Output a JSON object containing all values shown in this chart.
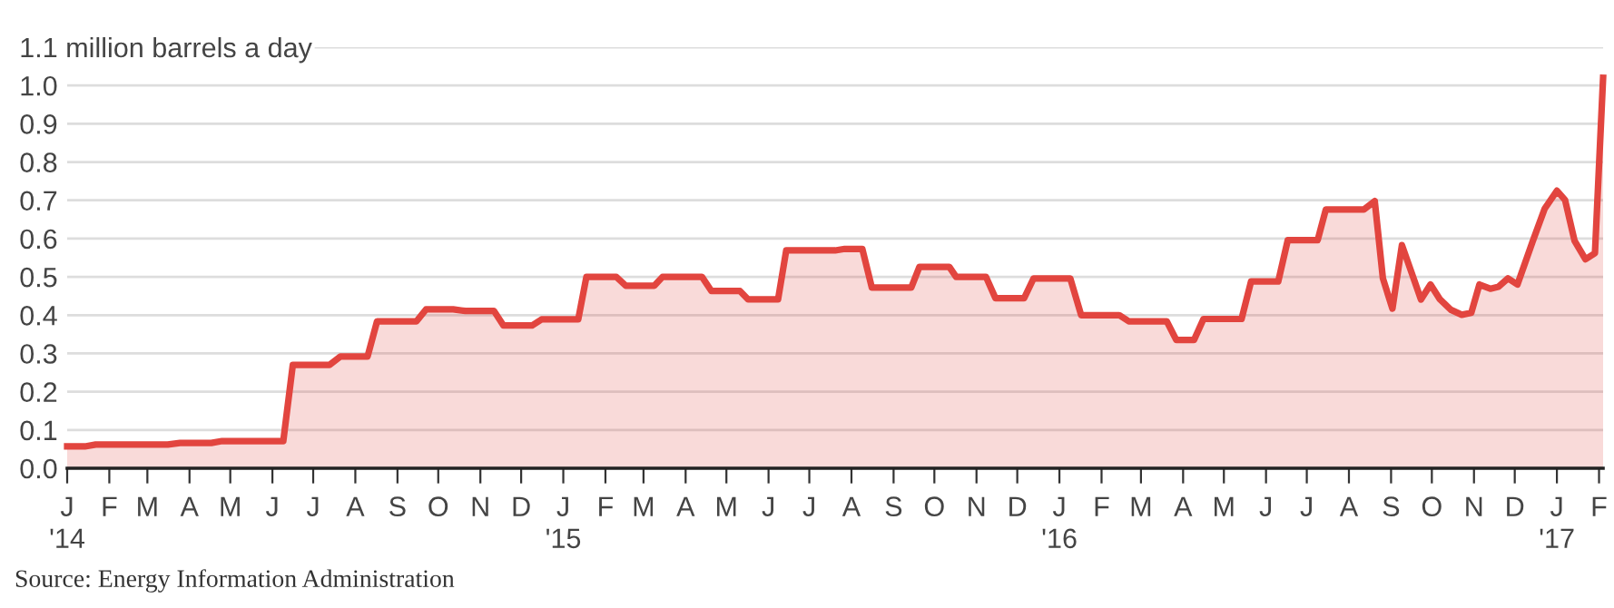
{
  "chart_data": {
    "type": "area",
    "ylim": [
      0,
      1.1
    ],
    "yticks": [
      {
        "value": 0,
        "label": "0.0"
      },
      {
        "value": 0.1,
        "label": "0.1"
      },
      {
        "value": 0.2,
        "label": "0.2"
      },
      {
        "value": 0.3,
        "label": "0.3"
      },
      {
        "value": 0.4,
        "label": "0.4"
      },
      {
        "value": 0.5,
        "label": "0.5"
      },
      {
        "value": 0.6,
        "label": "0.6"
      },
      {
        "value": 0.7,
        "label": "0.7"
      },
      {
        "value": 0.8,
        "label": "0.8"
      },
      {
        "value": 0.9,
        "label": "0.9"
      },
      {
        "value": 1.0,
        "label": "1.0"
      },
      {
        "value": 1.1,
        "label": "1.1 million barrels a day"
      }
    ],
    "xlim": [
      "2014-01-01",
      "2017-02-04"
    ],
    "xticks": [
      {
        "value": "2014-01-01",
        "label": "J\n'14"
      },
      {
        "value": "2014-02-01",
        "label": "F"
      },
      {
        "value": "2014-03-01",
        "label": "M"
      },
      {
        "value": "2014-04-01",
        "label": "A"
      },
      {
        "value": "2014-05-01",
        "label": "M"
      },
      {
        "value": "2014-06-01",
        "label": "J"
      },
      {
        "value": "2014-07-01",
        "label": "J"
      },
      {
        "value": "2014-08-01",
        "label": "A"
      },
      {
        "value": "2014-09-01",
        "label": "S"
      },
      {
        "value": "2014-10-01",
        "label": "O"
      },
      {
        "value": "2014-11-01",
        "label": "N"
      },
      {
        "value": "2014-12-01",
        "label": "D"
      },
      {
        "value": "2015-01-01",
        "label": "J\n'15"
      },
      {
        "value": "2015-02-01",
        "label": "F"
      },
      {
        "value": "2015-03-01",
        "label": "M"
      },
      {
        "value": "2015-04-01",
        "label": "A"
      },
      {
        "value": "2015-05-01",
        "label": "M"
      },
      {
        "value": "2015-06-01",
        "label": "J"
      },
      {
        "value": "2015-07-01",
        "label": "J"
      },
      {
        "value": "2015-08-01",
        "label": "A"
      },
      {
        "value": "2015-09-01",
        "label": "S"
      },
      {
        "value": "2015-10-01",
        "label": "O"
      },
      {
        "value": "2015-11-01",
        "label": "N"
      },
      {
        "value": "2015-12-01",
        "label": "D"
      },
      {
        "value": "2016-01-01",
        "label": "J\n'16"
      },
      {
        "value": "2016-02-01",
        "label": "F"
      },
      {
        "value": "2016-03-01",
        "label": "M"
      },
      {
        "value": "2016-04-01",
        "label": "A"
      },
      {
        "value": "2016-05-01",
        "label": "M"
      },
      {
        "value": "2016-06-01",
        "label": "J"
      },
      {
        "value": "2016-07-01",
        "label": "J"
      },
      {
        "value": "2016-08-01",
        "label": "A"
      },
      {
        "value": "2016-09-01",
        "label": "S"
      },
      {
        "value": "2016-10-01",
        "label": "O"
      },
      {
        "value": "2016-11-01",
        "label": "N"
      },
      {
        "value": "2016-12-01",
        "label": "D"
      },
      {
        "value": "2017-01-01",
        "label": "J\n'17"
      },
      {
        "value": "2017-02-01",
        "label": "F"
      }
    ],
    "grid": "y",
    "legend": false,
    "annotations": [
      "Source: Energy Information Administration"
    ],
    "series": [
      {
        "color": "#e2453f",
        "x": [
          "2014-01-01",
          "2014-01-14",
          "2014-01-22",
          "2014-03-16",
          "2014-03-25",
          "2014-04-17",
          "2014-04-25",
          "2014-06-09",
          "2014-06-16",
          "2014-07-13",
          "2014-07-21",
          "2014-08-10",
          "2014-08-17",
          "2014-09-15",
          "2014-09-22",
          "2014-10-12",
          "2014-10-21",
          "2014-11-11",
          "2014-11-18",
          "2014-12-09",
          "2014-12-16",
          "2015-01-12",
          "2015-01-18",
          "2015-02-09",
          "2015-02-16",
          "2015-03-09",
          "2015-03-15",
          "2015-04-13",
          "2015-04-20",
          "2015-05-11",
          "2015-05-17",
          "2015-06-08",
          "2015-06-14",
          "2015-07-20",
          "2015-07-27",
          "2015-08-09",
          "2015-08-16",
          "2015-09-14",
          "2015-09-20",
          "2015-10-12",
          "2015-10-17",
          "2015-11-08",
          "2015-11-15",
          "2015-12-06",
          "2015-12-13",
          "2016-01-09",
          "2016-01-17",
          "2016-02-14",
          "2016-02-21",
          "2016-03-20",
          "2016-03-27",
          "2016-04-09",
          "2016-04-16",
          "2016-05-14",
          "2016-05-21",
          "2016-06-10",
          "2016-06-17",
          "2016-07-09",
          "2016-07-15",
          "2016-08-12",
          "2016-08-20",
          "2016-08-26",
          "2016-09-02",
          "2016-09-09",
          "2016-09-23",
          "2016-09-30",
          "2016-10-07",
          "2016-10-15",
          "2016-10-23",
          "2016-10-30",
          "2016-11-05",
          "2016-11-13",
          "2016-11-19",
          "2016-11-26",
          "2016-12-03",
          "2016-12-14",
          "2016-12-23",
          "2017-01-01",
          "2017-01-07",
          "2017-01-14",
          "2017-01-22",
          "2017-01-29",
          "2017-02-04"
        ],
        "values": [
          0.057,
          0.057,
          0.062,
          0.062,
          0.066,
          0.066,
          0.071,
          0.071,
          0.27,
          0.27,
          0.292,
          0.292,
          0.384,
          0.384,
          0.415,
          0.415,
          0.411,
          0.411,
          0.373,
          0.373,
          0.389,
          0.389,
          0.5,
          0.5,
          0.477,
          0.477,
          0.5,
          0.5,
          0.463,
          0.463,
          0.441,
          0.441,
          0.569,
          0.569,
          0.573,
          0.573,
          0.472,
          0.472,
          0.526,
          0.526,
          0.5,
          0.5,
          0.444,
          0.444,
          0.496,
          0.496,
          0.4,
          0.4,
          0.384,
          0.384,
          0.335,
          0.335,
          0.39,
          0.39,
          0.488,
          0.488,
          0.596,
          0.596,
          0.676,
          0.676,
          0.698,
          0.496,
          0.417,
          0.583,
          0.441,
          0.48,
          0.441,
          0.414,
          0.401,
          0.406,
          0.48,
          0.469,
          0.474,
          0.496,
          0.48,
          0.591,
          0.678,
          0.725,
          0.701,
          0.594,
          0.546,
          0.562,
          1.02
        ]
      }
    ]
  }
}
